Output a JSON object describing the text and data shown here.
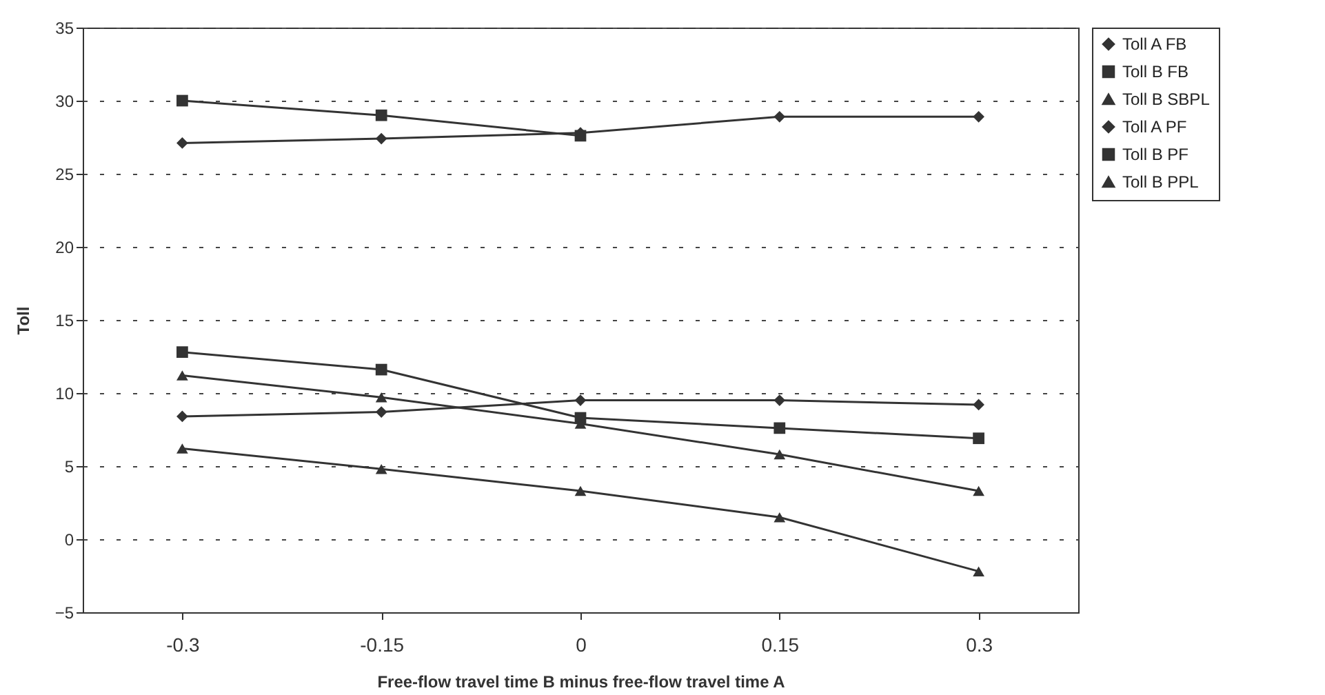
{
  "chart_data": {
    "type": "line",
    "xlabel": "Free-flow travel time B minus free-flow travel time A",
    "ylabel": "Toll",
    "categories": [
      "-0.3",
      "-0.15",
      "0",
      "0.15",
      "0.3"
    ],
    "series": [
      {
        "name": "Toll A FB",
        "color": "#333333",
        "marker": "diamond",
        "values": [
          8.4,
          8.7,
          9.5,
          9.5,
          9.2
        ]
      },
      {
        "name": "Toll B FB",
        "color": "#333333",
        "marker": "square",
        "values": [
          12.8,
          11.6,
          8.3,
          7.6,
          6.9
        ]
      },
      {
        "name": "Toll B SBPL",
        "color": "#333333",
        "marker": "triangle",
        "values": [
          6.2,
          4.8,
          3.3,
          1.5,
          -2.2
        ]
      },
      {
        "name": "Toll A PF",
        "color": "#333333",
        "marker": "diamond",
        "values": [
          27.1,
          27.4,
          27.8,
          28.9,
          28.9
        ]
      },
      {
        "name": "Toll B PF",
        "color": "#333333",
        "marker": "square",
        "values": [
          30.0,
          29.0,
          27.6,
          null,
          null
        ]
      },
      {
        "name": "Toll B PPL",
        "color": "#333333",
        "marker": "triangle",
        "values": [
          11.2,
          9.7,
          7.9,
          5.8,
          3.3
        ]
      }
    ],
    "ylim": [
      -5,
      35
    ],
    "yticks": [
      -5,
      0,
      5,
      10,
      15,
      20,
      25,
      30,
      35
    ],
    "grid": "y",
    "legend": "right",
    "line_style": "solid"
  }
}
